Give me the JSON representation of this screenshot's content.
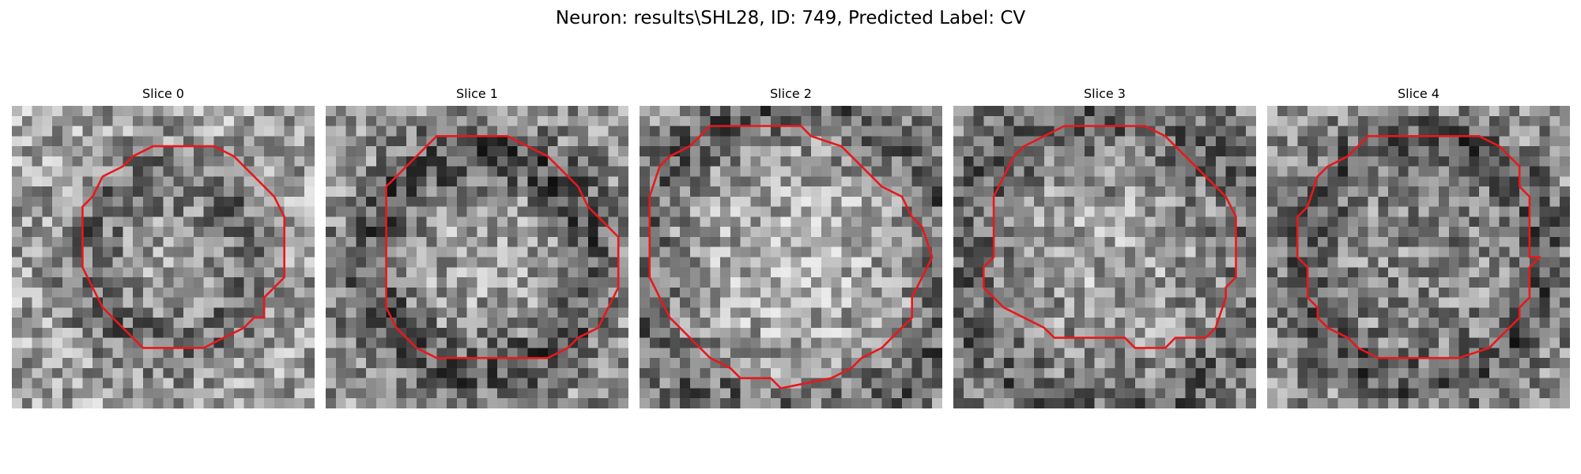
{
  "figure": {
    "title": "Neuron: results\\SHL28, ID: 749, Predicted Label: CV"
  },
  "panels": [
    {
      "title": "Slice 0",
      "contour_color": "#e8181c",
      "colormap": "gray"
    },
    {
      "title": "Slice 1",
      "contour_color": "#e8181c",
      "colormap": "gray"
    },
    {
      "title": "Slice 2",
      "contour_color": "#e8181c",
      "colormap": "gray"
    },
    {
      "title": "Slice 3",
      "contour_color": "#e8181c",
      "colormap": "gray"
    },
    {
      "title": "Slice 4",
      "contour_color": "#e8181c",
      "colormap": "gray"
    }
  ]
}
